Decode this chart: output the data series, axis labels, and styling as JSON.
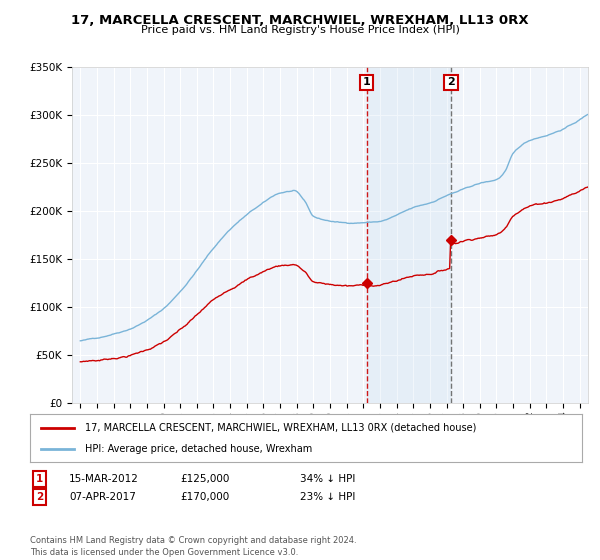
{
  "title": "17, MARCELLA CRESCENT, MARCHWIEL, WREXHAM, LL13 0RX",
  "subtitle": "Price paid vs. HM Land Registry's House Price Index (HPI)",
  "hpi_label": "HPI: Average price, detached house, Wrexham",
  "property_label": "17, MARCELLA CRESCENT, MARCHWIEL, WREXHAM, LL13 0RX (detached house)",
  "footnote": "Contains HM Land Registry data © Crown copyright and database right 2024.\nThis data is licensed under the Open Government Licence v3.0.",
  "sale1_date": "15-MAR-2012",
  "sale1_price": 125000,
  "sale1_pct": "34% ↓ HPI",
  "sale2_date": "07-APR-2017",
  "sale2_price": 170000,
  "sale2_pct": "23% ↓ HPI",
  "hpi_color": "#7ab4d8",
  "property_color": "#cc0000",
  "sale1_vline_x": 2012.2,
  "sale2_vline_x": 2017.27,
  "background_color": "#ffffff",
  "plot_bg_color": "#f0f4fa",
  "shade_color": "#c8dff0",
  "ylim_max": 350000,
  "xlim_min": 1994.5,
  "xlim_max": 2025.5
}
